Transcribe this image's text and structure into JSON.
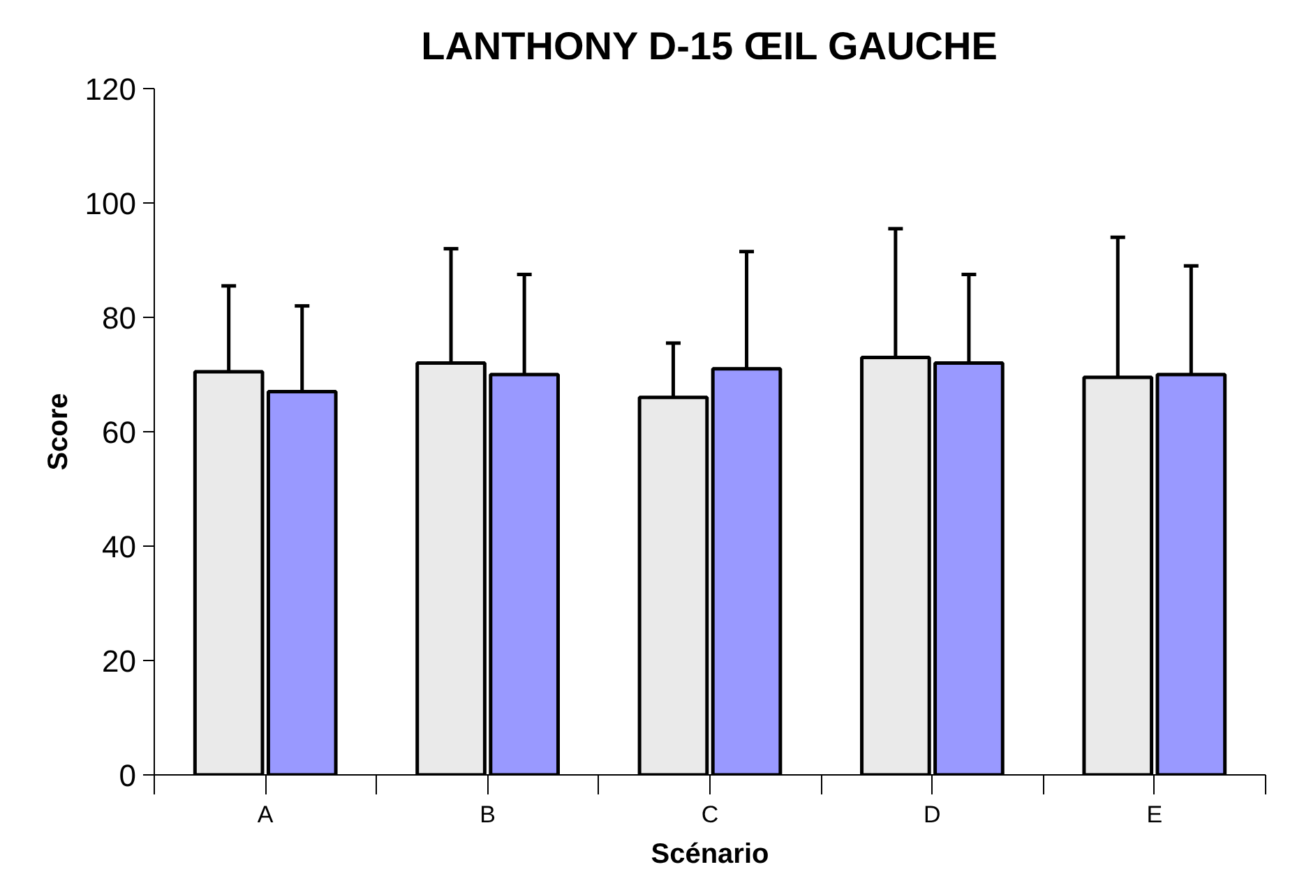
{
  "chart_data": {
    "type": "bar",
    "title": "LANTHONY D-15 ŒIL GAUCHE",
    "xlabel": "Scénario",
    "ylabel": "Score",
    "categories": [
      "A",
      "B",
      "C",
      "D",
      "E"
    ],
    "series": [
      {
        "color": "#eaeaea",
        "values": [
          70.5,
          72,
          66,
          73,
          69.5
        ],
        "errors": [
          [
            70.5,
            85.5
          ],
          [
            72,
            92
          ],
          [
            66,
            75.5
          ],
          [
            73,
            95.5
          ],
          [
            69.5,
            94
          ]
        ]
      },
      {
        "color": "#9999ff",
        "values": [
          67,
          70,
          71,
          72,
          70
        ],
        "errors": [
          [
            67,
            82
          ],
          [
            70,
            87.5
          ],
          [
            71,
            91.5
          ],
          [
            72,
            87.5
          ],
          [
            70,
            89
          ]
        ]
      }
    ],
    "ylim": [
      0,
      120
    ],
    "yticks": [
      0,
      20,
      40,
      60,
      80,
      100,
      120
    ],
    "grid": false
  }
}
